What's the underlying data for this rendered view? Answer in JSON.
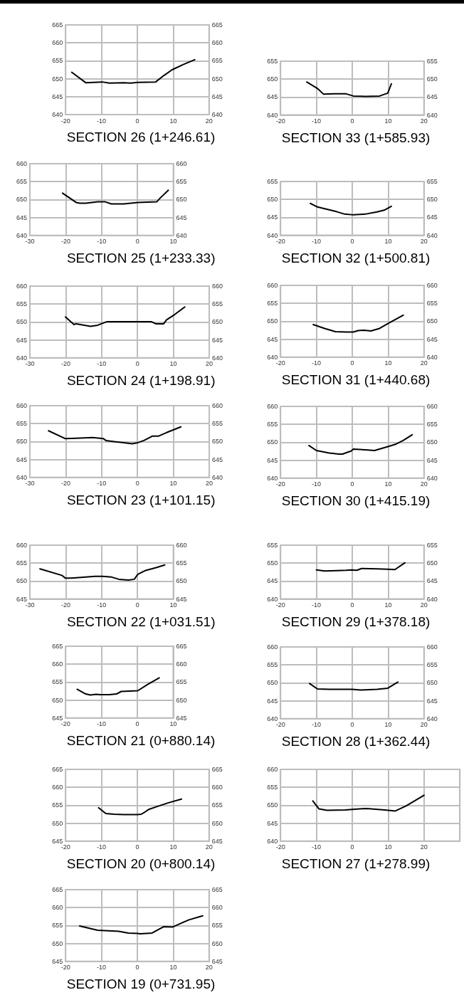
{
  "chart_data": [
    {
      "type": "line",
      "title": "SECTION 26 (1+246.61)",
      "xlim": [
        -20,
        20
      ],
      "xticks": [
        -20,
        -10,
        0,
        10,
        20
      ],
      "ylim": [
        640,
        665
      ],
      "yticks": [
        640,
        645,
        650,
        655,
        660,
        665
      ],
      "y2lim": [
        640,
        665
      ],
      "y2ticks": [
        640,
        645,
        650,
        655,
        660,
        665
      ],
      "grid": true,
      "x": [
        -18.3,
        -14.4,
        -9.8,
        -7.8,
        -3.8,
        -1.9,
        0.1,
        5.1,
        7.4,
        9.7,
        12.7,
        16.0
      ],
      "series": [
        {
          "color": "#000000",
          "values": [
            651.8,
            648.9,
            649.1,
            648.8,
            648.9,
            648.8,
            649.0,
            649.1,
            650.9,
            652.5,
            653.9,
            655.3
          ]
        }
      ]
    },
    {
      "type": "line",
      "title": "SECTION 33 (1+585.93)",
      "xlim": [
        -20,
        20
      ],
      "xticks": [
        -20,
        -10,
        0,
        10,
        20
      ],
      "ylim": [
        640,
        655
      ],
      "yticks": [
        640,
        645,
        650,
        655
      ],
      "y2lim": [
        640,
        655
      ],
      "y2ticks": [
        640,
        645,
        650,
        655
      ],
      "grid": true,
      "x": [
        -12.7,
        -9.7,
        -8.0,
        -5.0,
        -1.7,
        0.3,
        3.6,
        7.6,
        9.9,
        10.9
      ],
      "series": [
        {
          "color": "#000000",
          "values": [
            649.2,
            647.4,
            645.8,
            645.9,
            645.9,
            645.3,
            645.2,
            645.3,
            646.1,
            648.7
          ]
        }
      ]
    },
    {
      "type": "line",
      "title": "SECTION 25 (1+233.33)",
      "xlim": [
        -30,
        10
      ],
      "xticks": [
        -30,
        -20,
        -10,
        0,
        10
      ],
      "ylim": [
        640,
        660
      ],
      "yticks": [
        640,
        645,
        650,
        655,
        660
      ],
      "y2lim": [
        640,
        660
      ],
      "y2ticks": [
        640,
        645,
        650,
        655,
        660
      ],
      "grid": true,
      "x": [
        -20.9,
        -17.1,
        -16.1,
        -14.4,
        -11.1,
        -9.1,
        -7.3,
        -3.8,
        -1.9,
        0.1,
        5.4,
        6.4,
        8.6
      ],
      "series": [
        {
          "color": "#000000",
          "values": [
            651.8,
            649.2,
            649.0,
            649.0,
            649.4,
            649.4,
            648.8,
            648.8,
            649.0,
            649.2,
            649.4,
            650.5,
            652.6
          ]
        }
      ]
    },
    {
      "type": "line",
      "title": "SECTION 32 (1+500.81)",
      "xlim": [
        -20,
        20
      ],
      "xticks": [
        -20,
        -10,
        0,
        10,
        20
      ],
      "ylim": [
        640,
        655
      ],
      "yticks": [
        640,
        645,
        650,
        655
      ],
      "y2lim": [
        640,
        655
      ],
      "y2ticks": [
        640,
        645,
        650,
        655
      ],
      "grid": true,
      "x": [
        -11.7,
        -9.7,
        -7.7,
        -4.4,
        -2.1,
        0.3,
        3.6,
        6.9,
        8.9,
        10.9
      ],
      "series": [
        {
          "color": "#000000",
          "values": [
            648.9,
            647.9,
            647.4,
            646.6,
            645.9,
            645.7,
            645.9,
            646.5,
            647.0,
            648.1
          ]
        }
      ]
    },
    {
      "type": "line",
      "title": "SECTION 24 (1+198.91)",
      "xlim": [
        -30,
        20
      ],
      "xticks": [
        -30,
        -20,
        -10,
        0,
        10,
        20
      ],
      "ylim": [
        640,
        660
      ],
      "yticks": [
        640,
        645,
        650,
        655,
        660
      ],
      "y2lim": [
        640,
        660
      ],
      "y2ticks": [
        640,
        645,
        650,
        655,
        660
      ],
      "grid": true,
      "x": [
        -20.1,
        -17.7,
        -17.1,
        -13.1,
        -11.1,
        -8.5,
        -4.5,
        0.1,
        3.8,
        5.1,
        7.3,
        8.1,
        10.4,
        13.2
      ],
      "series": [
        {
          "color": "#000000",
          "values": [
            651.4,
            649.3,
            649.5,
            648.8,
            649.1,
            650.1,
            650.1,
            650.1,
            650.1,
            649.5,
            649.5,
            650.6,
            652.1,
            654.2
          ]
        }
      ]
    },
    {
      "type": "line",
      "title": "SECTION 31 (1+440.68)",
      "xlim": [
        -20,
        20
      ],
      "xticks": [
        -20,
        -10,
        0,
        10,
        20
      ],
      "ylim": [
        640,
        660
      ],
      "yticks": [
        640,
        645,
        650,
        655,
        660
      ],
      "y2lim": [
        640,
        660
      ],
      "y2ticks": [
        640,
        645,
        650,
        655,
        660
      ],
      "grid": true,
      "x": [
        -10.9,
        -7.7,
        -4.7,
        -1.7,
        0.3,
        1.6,
        3.3,
        5.2,
        7.6,
        10.2,
        14.2
      ],
      "series": [
        {
          "color": "#000000",
          "values": [
            649.1,
            648.0,
            647.1,
            647.0,
            647.0,
            647.4,
            647.5,
            647.3,
            648.0,
            649.5,
            651.7
          ]
        }
      ]
    },
    {
      "type": "line",
      "title": "SECTION 23 (1+101.15)",
      "xlim": [
        -30,
        20
      ],
      "xticks": [
        -30,
        -20,
        -10,
        0,
        10,
        20
      ],
      "ylim": [
        640,
        660
      ],
      "yticks": [
        640,
        645,
        650,
        655,
        660
      ],
      "y2lim": [
        640,
        660
      ],
      "y2ticks": [
        640,
        645,
        650,
        655,
        660
      ],
      "grid": true,
      "x": [
        -24.8,
        -20.1,
        -17.1,
        -12.5,
        -9.5,
        -8.8,
        -6.5,
        -3.8,
        -1.5,
        0.1,
        1.8,
        4.1,
        5.8,
        8.1,
        12.1
      ],
      "series": [
        {
          "color": "#000000",
          "values": [
            653.0,
            650.8,
            650.9,
            651.1,
            650.8,
            650.3,
            650.0,
            649.7,
            649.4,
            649.7,
            650.3,
            651.5,
            651.5,
            652.5,
            654.1
          ]
        }
      ]
    },
    {
      "type": "line",
      "title": "SECTION 30 (1+415.19)",
      "xlim": [
        -20,
        20
      ],
      "xticks": [
        -20,
        -10,
        0,
        10,
        20
      ],
      "ylim": [
        640,
        660
      ],
      "yticks": [
        640,
        645,
        650,
        655,
        660
      ],
      "y2lim": [
        640,
        660
      ],
      "y2ticks": [
        640,
        645,
        650,
        655,
        660
      ],
      "grid": true,
      "x": [
        -12.1,
        -10.0,
        -6.4,
        -3.7,
        -2.7,
        -1.1,
        -0.4,
        0.3,
        3.6,
        6.2,
        9.6,
        12.2,
        14.2,
        16.7
      ],
      "series": [
        {
          "color": "#000000",
          "values": [
            649.1,
            647.7,
            647.0,
            646.7,
            646.7,
            647.3,
            647.5,
            648.1,
            647.9,
            647.7,
            648.7,
            649.5,
            650.5,
            652.1
          ]
        }
      ]
    },
    {
      "type": "line",
      "title": "SECTION 22 (1+031.51)",
      "xlim": [
        -30,
        10
      ],
      "xticks": [
        -30,
        -20,
        -10,
        0,
        10
      ],
      "ylim": [
        645,
        660
      ],
      "yticks": [
        645,
        650,
        655,
        660
      ],
      "y2lim": [
        645,
        660
      ],
      "y2ticks": [
        645,
        650,
        655,
        660
      ],
      "grid": true,
      "x": [
        -27.2,
        -21.1,
        -20.1,
        -18.4,
        -14.4,
        -11.8,
        -9.8,
        -7.2,
        -5.2,
        -2.5,
        -0.9,
        0.1,
        2.1,
        5.4,
        7.6
      ],
      "series": [
        {
          "color": "#000000",
          "values": [
            653.4,
            651.6,
            650.8,
            650.8,
            651.1,
            651.3,
            651.3,
            651.1,
            650.5,
            650.3,
            650.5,
            651.9,
            652.9,
            653.8,
            654.5
          ]
        }
      ]
    },
    {
      "type": "line",
      "title": "SECTION 29 (1+378.18)",
      "xlim": [
        -20,
        20
      ],
      "xticks": [
        -20,
        -10,
        0,
        10,
        20
      ],
      "ylim": [
        640,
        655
      ],
      "yticks": [
        640,
        645,
        650,
        655
      ],
      "y2lim": [
        640,
        655
      ],
      "y2ticks": [
        640,
        645,
        650,
        655
      ],
      "grid": true,
      "x": [
        -10.0,
        -7.7,
        -4.4,
        -1.7,
        -0.4,
        1.3,
        2.6,
        6.9,
        9.6,
        11.9,
        14.7
      ],
      "series": [
        {
          "color": "#000000",
          "values": [
            648.1,
            647.8,
            647.9,
            648.0,
            648.1,
            648.0,
            648.5,
            648.4,
            648.3,
            648.2,
            650.1
          ]
        }
      ]
    },
    {
      "type": "line",
      "title": "SECTION 21 (0+880.14)",
      "xlim": [
        -20,
        10
      ],
      "xticks": [
        -20,
        -10,
        0,
        10
      ],
      "ylim": [
        645,
        665
      ],
      "yticks": [
        645,
        650,
        655,
        660,
        665
      ],
      "y2lim": [
        645,
        665
      ],
      "y2ticks": [
        645,
        650,
        655,
        660,
        665
      ],
      "grid": true,
      "x": [
        -16.8,
        -14.4,
        -13.1,
        -11.5,
        -10.5,
        -7.8,
        -5.8,
        -4.5,
        0.1,
        2.8,
        6.1
      ],
      "series": [
        {
          "color": "#000000",
          "values": [
            653.0,
            651.7,
            651.4,
            651.6,
            651.5,
            651.5,
            651.7,
            652.4,
            652.6,
            654.3,
            656.2
          ]
        }
      ]
    },
    {
      "type": "line",
      "title": "SECTION 28 (1+362.44)",
      "xlim": [
        -20,
        20
      ],
      "xticks": [
        -20,
        -10,
        0,
        10,
        20
      ],
      "ylim": [
        640,
        660
      ],
      "yticks": [
        640,
        645,
        650,
        655,
        660
      ],
      "y2lim": [
        640,
        660
      ],
      "y2ticks": [
        640,
        645,
        650,
        655,
        660
      ],
      "grid": true,
      "x": [
        -11.9,
        -9.7,
        -6.4,
        0,
        2.3,
        6.9,
        9.9,
        12.7
      ],
      "series": [
        {
          "color": "#000000",
          "values": [
            649.8,
            648.3,
            648.2,
            648.2,
            648.0,
            648.2,
            648.5,
            650.2
          ]
        }
      ]
    },
    {
      "type": "line",
      "title": "SECTION 20 (0+800.14)",
      "xlim": [
        -20,
        20
      ],
      "xticks": [
        -20,
        -10,
        0,
        10,
        20
      ],
      "ylim": [
        645,
        665
      ],
      "yticks": [
        645,
        650,
        655,
        660,
        665
      ],
      "y2lim": [
        645,
        665
      ],
      "y2ticks": [
        645,
        650,
        655,
        660,
        665
      ],
      "grid": true,
      "x": [
        -10.8,
        -8.8,
        -6.5,
        -3.8,
        0.1,
        1.1,
        1.8,
        3.3,
        5.4,
        8.7,
        12.3
      ],
      "series": [
        {
          "color": "#000000",
          "values": [
            654.3,
            652.7,
            652.5,
            652.4,
            652.4,
            652.5,
            652.9,
            653.9,
            654.6,
            655.7,
            656.7
          ]
        }
      ]
    },
    {
      "type": "line",
      "title": "SECTION 27 (1+278.99)",
      "xlim": [
        -20,
        30
      ],
      "xticks": [
        -20,
        -10,
        0,
        10,
        20
      ],
      "ylim": [
        640,
        660
      ],
      "yticks": [
        640,
        645,
        650,
        655,
        660
      ],
      "grid": true,
      "x": [
        -11,
        -9.3,
        -7,
        -2,
        2,
        4,
        9,
        12,
        15,
        20
      ],
      "series": [
        {
          "color": "#000000",
          "values": [
            651.2,
            649.0,
            648.6,
            648.7,
            649.0,
            649.1,
            648.7,
            648.4,
            649.8,
            652.8
          ]
        }
      ]
    },
    {
      "type": "line",
      "title": "SECTION 19 (0+731.95)",
      "xlim": [
        -20,
        20
      ],
      "xticks": [
        -20,
        -10,
        0,
        10,
        20
      ],
      "ylim": [
        645,
        665
      ],
      "yticks": [
        645,
        650,
        655,
        660,
        665
      ],
      "y2lim": [
        645,
        665
      ],
      "y2ticks": [
        645,
        650,
        655,
        660,
        665
      ],
      "grid": true,
      "x": [
        -16.1,
        -11.1,
        -5.2,
        -2.5,
        0.1,
        0.8,
        4.1,
        7.4,
        9.9,
        12.1,
        14.4,
        18.2
      ],
      "series": [
        {
          "color": "#000000",
          "values": [
            654.9,
            653.7,
            653.4,
            652.9,
            652.8,
            652.7,
            652.9,
            654.7,
            654.6,
            655.6,
            656.6,
            657.7
          ]
        }
      ]
    }
  ]
}
